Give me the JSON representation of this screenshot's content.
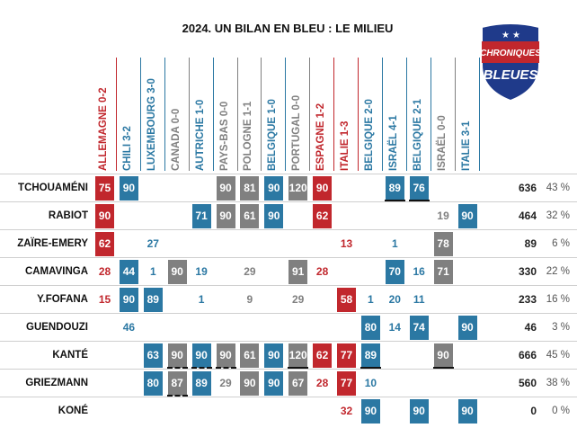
{
  "title": "2024. UN BILAN EN BLEU : LE MILIEU",
  "logo": {
    "line1": "CHRONIQUES",
    "line2": "BLEUES"
  },
  "colors": {
    "red": "#c1272d",
    "blue": "#2b78a3",
    "gray": "#808080"
  },
  "matches": [
    {
      "label": "ALLEMAGNE 0-2",
      "color": "#c1272d"
    },
    {
      "label": "CHILI 3-2",
      "color": "#2b78a3"
    },
    {
      "label": "LUXEMBOURG 3-0",
      "color": "#2b78a3"
    },
    {
      "label": "CANADA 0-0",
      "color": "#808080"
    },
    {
      "label": "AUTRICHE 1-0",
      "color": "#2b78a3"
    },
    {
      "label": "PAYS-BAS 0-0",
      "color": "#808080"
    },
    {
      "label": "POLOGNE 1-1",
      "color": "#808080"
    },
    {
      "label": "BELGIQUE 1-0",
      "color": "#2b78a3"
    },
    {
      "label": "PORTUGAL 0-0",
      "color": "#808080"
    },
    {
      "label": "ESPAGNE 1-2",
      "color": "#c1272d"
    },
    {
      "label": "ITALIE 1-3",
      "color": "#c1272d"
    },
    {
      "label": "BELGIQUE 2-0",
      "color": "#2b78a3"
    },
    {
      "label": "ISRAËL 4-1",
      "color": "#2b78a3"
    },
    {
      "label": "BELGIQUE 2-1",
      "color": "#2b78a3"
    },
    {
      "label": "ISRAËL 0-0",
      "color": "#808080"
    },
    {
      "label": "ITALIE 3-1",
      "color": "#2b78a3"
    }
  ],
  "players": [
    {
      "name": "TCHOUAMÉNI",
      "total": "636",
      "pct": "43 %",
      "cells": [
        {
          "v": "75",
          "f": 1
        },
        {
          "v": "90",
          "f": 1
        },
        null,
        null,
        null,
        {
          "v": "90",
          "f": 1
        },
        {
          "v": "81",
          "f": 1
        },
        {
          "v": "90",
          "f": 1
        },
        {
          "v": "120",
          "f": 1
        },
        {
          "v": "90",
          "f": 1
        },
        null,
        null,
        {
          "v": "89",
          "f": 1
        },
        {
          "v": "76",
          "f": 1
        },
        null,
        null
      ],
      "marks": [
        {
          "c": 12,
          "t": "solid"
        },
        {
          "c": 13,
          "t": "solid"
        }
      ]
    },
    {
      "name": "RABIOT",
      "total": "464",
      "pct": "32 %",
      "cells": [
        {
          "v": "90",
          "f": 1
        },
        null,
        null,
        null,
        {
          "v": "71",
          "f": 1
        },
        {
          "v": "90",
          "f": 1
        },
        {
          "v": "61",
          "f": 1
        },
        {
          "v": "90",
          "f": 1
        },
        null,
        {
          "v": "62",
          "f": 1
        },
        null,
        null,
        null,
        null,
        {
          "v": "19",
          "f": 0
        },
        {
          "v": "90",
          "f": 1
        }
      ],
      "marks": []
    },
    {
      "name": "ZAÏRE-EMERY",
      "total": "89",
      "pct": "6 %",
      "cells": [
        {
          "v": "62",
          "f": 1
        },
        null,
        {
          "v": "27",
          "f": 0
        },
        null,
        null,
        null,
        null,
        null,
        null,
        null,
        {
          "v": "13",
          "f": 0
        },
        null,
        {
          "v": "1",
          "f": 0
        },
        null,
        {
          "v": "78",
          "f": 1
        },
        null
      ],
      "marks": []
    },
    {
      "name": "CAMAVINGA",
      "total": "330",
      "pct": "22 %",
      "cells": [
        {
          "v": "28",
          "f": 0
        },
        {
          "v": "44",
          "f": 1
        },
        {
          "v": "1",
          "f": 0
        },
        {
          "v": "90",
          "f": 1
        },
        {
          "v": "19",
          "f": 0
        },
        null,
        {
          "v": "29",
          "f": 0
        },
        null,
        {
          "v": "91",
          "f": 1
        },
        {
          "v": "28",
          "f": 0
        },
        null,
        null,
        {
          "v": "70",
          "f": 1
        },
        {
          "v": "16",
          "f": 0
        },
        {
          "v": "71",
          "f": 1
        },
        null
      ],
      "marks": []
    },
    {
      "name": "Y.FOFANA",
      "total": "233",
      "pct": "16 %",
      "cells": [
        {
          "v": "15",
          "f": 0
        },
        {
          "v": "90",
          "f": 1
        },
        {
          "v": "89",
          "f": 1
        },
        null,
        {
          "v": "1",
          "f": 0
        },
        null,
        {
          "v": "9",
          "f": 0
        },
        null,
        {
          "v": "29",
          "f": 0
        },
        null,
        {
          "v": "58",
          "f": 1
        },
        {
          "v": "1",
          "f": 0
        },
        {
          "v": "20",
          "f": 0
        },
        {
          "v": "11",
          "f": 0
        },
        null,
        null
      ],
      "marks": []
    },
    {
      "name": "GUENDOUZI",
      "total": "46",
      "pct": "3 %",
      "cells": [
        null,
        {
          "v": "46",
          "f": 0
        },
        null,
        null,
        null,
        null,
        null,
        null,
        null,
        null,
        null,
        {
          "v": "80",
          "f": 1
        },
        {
          "v": "14",
          "f": 0
        },
        {
          "v": "74",
          "f": 1
        },
        null,
        {
          "v": "90",
          "f": 1
        }
      ],
      "marks": []
    },
    {
      "name": "KANTÉ",
      "total": "666",
      "pct": "45 %",
      "cells": [
        null,
        null,
        {
          "v": "63",
          "f": 1
        },
        {
          "v": "90",
          "f": 1
        },
        {
          "v": "90",
          "f": 1
        },
        {
          "v": "90",
          "f": 1
        },
        {
          "v": "61",
          "f": 1
        },
        {
          "v": "90",
          "f": 1
        },
        {
          "v": "120",
          "f": 1
        },
        {
          "v": "62",
          "f": 1
        },
        {
          "v": "77",
          "f": 1
        },
        {
          "v": "89",
          "f": 1
        },
        null,
        null,
        {
          "v": "90",
          "f": 1
        },
        null
      ],
      "marks": [
        {
          "c": 3,
          "t": "dash"
        },
        {
          "c": 4,
          "t": "dash"
        },
        {
          "c": 5,
          "t": "dash"
        },
        {
          "c": 8,
          "t": "solid"
        },
        {
          "c": 11,
          "t": "solid"
        },
        {
          "c": 14,
          "t": "solid"
        }
      ]
    },
    {
      "name": "GRIEZMANN",
      "total": "560",
      "pct": "38 %",
      "cells": [
        null,
        null,
        {
          "v": "80",
          "f": 1
        },
        {
          "v": "87",
          "f": 1
        },
        {
          "v": "89",
          "f": 1
        },
        {
          "v": "29",
          "f": 0
        },
        {
          "v": "90",
          "f": 1
        },
        {
          "v": "90",
          "f": 1
        },
        {
          "v": "67",
          "f": 1
        },
        {
          "v": "28",
          "f": 0
        },
        {
          "v": "77",
          "f": 1
        },
        {
          "v": "10",
          "f": 0
        },
        null,
        null,
        null,
        null
      ],
      "marks": [
        {
          "c": 3,
          "t": "dash"
        }
      ]
    },
    {
      "name": "KONÉ",
      "total": "0",
      "pct": "0 %",
      "cells": [
        null,
        null,
        null,
        null,
        null,
        null,
        null,
        null,
        null,
        null,
        {
          "v": "32",
          "f": 0
        },
        {
          "v": "90",
          "f": 1
        },
        null,
        {
          "v": "90",
          "f": 1
        },
        null,
        {
          "v": "90",
          "f": 1
        }
      ],
      "marks": []
    }
  ]
}
